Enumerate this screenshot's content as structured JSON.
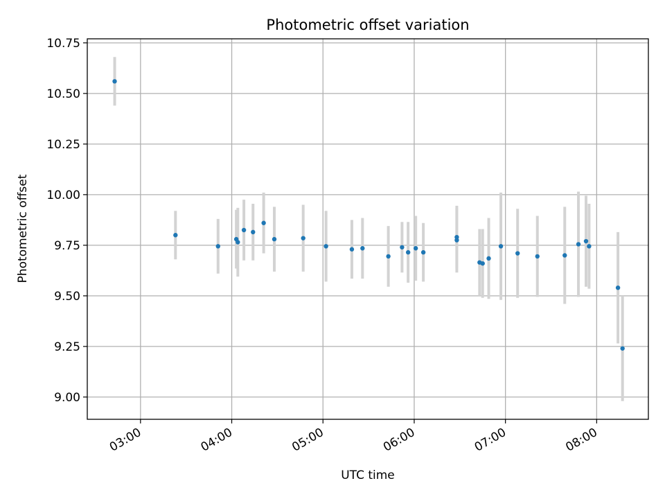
{
  "chart_data": {
    "type": "scatter",
    "title": "Photometric offset variation",
    "xlabel": "UTC time",
    "ylabel": "Photometric offset",
    "grid": true,
    "x_ticks": [
      "03:00",
      "04:00",
      "05:00",
      "06:00",
      "07:00",
      "08:00"
    ],
    "y_ticks": [
      "9.00",
      "9.25",
      "9.50",
      "9.75",
      "10.00",
      "10.25",
      "10.50",
      "10.75"
    ],
    "xlim": [
      "02:25",
      "08:34"
    ],
    "ylim": [
      8.89,
      10.77
    ],
    "colors": {
      "marker": "#1f77b4",
      "errorbar": "#d3d3d3",
      "grid": "#b0b0b0"
    },
    "points": [
      {
        "t": "02:43",
        "y": 10.56,
        "err": 0.12
      },
      {
        "t": "03:23",
        "y": 9.8,
        "err": 0.12
      },
      {
        "t": "03:51",
        "y": 9.745,
        "err": 0.135
      },
      {
        "t": "04:03",
        "y": 9.78,
        "err": 0.145
      },
      {
        "t": "04:04",
        "y": 9.765,
        "err": 0.17
      },
      {
        "t": "04:08",
        "y": 9.825,
        "err": 0.15
      },
      {
        "t": "04:14",
        "y": 9.815,
        "err": 0.14
      },
      {
        "t": "04:21",
        "y": 9.86,
        "err": 0.15
      },
      {
        "t": "04:28",
        "y": 9.78,
        "err": 0.16
      },
      {
        "t": "04:47",
        "y": 9.785,
        "err": 0.165
      },
      {
        "t": "05:02",
        "y": 9.745,
        "err": 0.175
      },
      {
        "t": "05:19",
        "y": 9.73,
        "err": 0.145
      },
      {
        "t": "05:26",
        "y": 9.735,
        "err": 0.15
      },
      {
        "t": "05:43",
        "y": 9.695,
        "err": 0.15
      },
      {
        "t": "05:52",
        "y": 9.74,
        "err": 0.125
      },
      {
        "t": "05:56",
        "y": 9.715,
        "err": 0.15
      },
      {
        "t": "06:01",
        "y": 9.735,
        "err": 0.16
      },
      {
        "t": "06:06",
        "y": 9.715,
        "err": 0.145
      },
      {
        "t": "06:28",
        "y": 9.79,
        "err": 0.155
      },
      {
        "t": "06:28",
        "y": 9.775,
        "err": 0.16
      },
      {
        "t": "06:43",
        "y": 9.665,
        "err": 0.165
      },
      {
        "t": "06:45",
        "y": 9.66,
        "err": 0.17
      },
      {
        "t": "06:49",
        "y": 9.685,
        "err": 0.2
      },
      {
        "t": "06:57",
        "y": 9.745,
        "err": 0.265
      },
      {
        "t": "07:08",
        "y": 9.71,
        "err": 0.22
      },
      {
        "t": "07:21",
        "y": 9.695,
        "err": 0.2
      },
      {
        "t": "07:39",
        "y": 9.7,
        "err": 0.24
      },
      {
        "t": "07:48",
        "y": 9.755,
        "err": 0.26
      },
      {
        "t": "07:53",
        "y": 9.77,
        "err": 0.225
      },
      {
        "t": "07:55",
        "y": 9.745,
        "err": 0.21
      },
      {
        "t": "08:14",
        "y": 9.54,
        "err": 0.275
      },
      {
        "t": "08:17",
        "y": 9.24,
        "err": 0.26
      }
    ]
  }
}
